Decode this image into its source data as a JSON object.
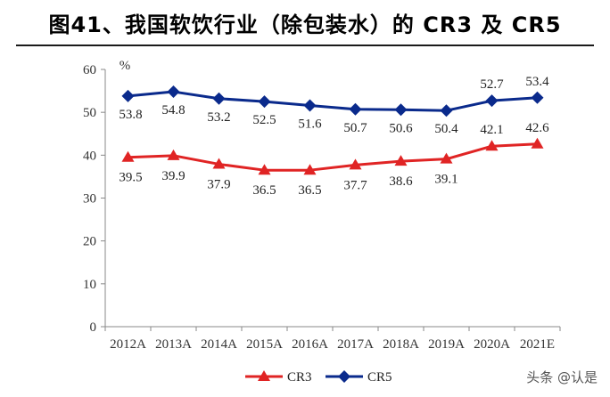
{
  "title": "图41、我国软饮行业（除包装水）的 CR3 及 CR5",
  "watermark": "头条 @认是",
  "chart_data": {
    "type": "line",
    "categories": [
      "2012A",
      "2013A",
      "2014A",
      "2015A",
      "2016A",
      "2017A",
      "2018A",
      "2019A",
      "2020A",
      "2021E"
    ],
    "series": [
      {
        "name": "CR3",
        "color": "#e02424",
        "marker": "triangle",
        "values": [
          39.5,
          39.9,
          37.9,
          36.5,
          36.5,
          37.7,
          38.6,
          39.1,
          42.1,
          42.6
        ]
      },
      {
        "name": "CR5",
        "color": "#0a2a8c",
        "marker": "diamond",
        "values": [
          53.8,
          54.8,
          53.2,
          52.5,
          51.6,
          50.7,
          50.6,
          50.4,
          52.7,
          53.4
        ]
      }
    ],
    "yunit": "%",
    "ylim": [
      0,
      60
    ],
    "yticks": [
      0,
      10,
      20,
      30,
      40,
      50,
      60
    ],
    "grid": false,
    "legend": "bottom-center"
  }
}
